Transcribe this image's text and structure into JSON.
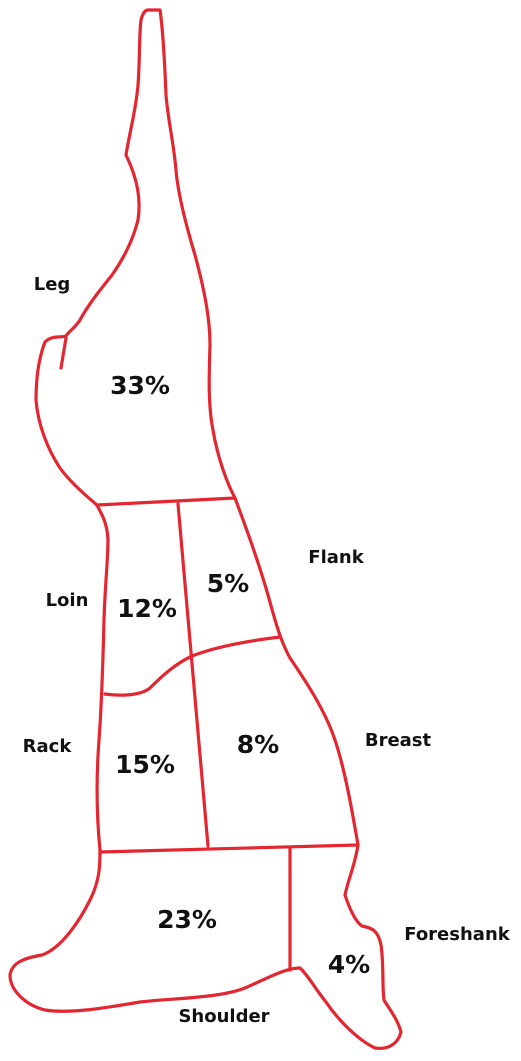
{
  "cuts": [
    {
      "name": "Leg",
      "share": "33%"
    },
    {
      "name": "Loin",
      "share": "12%"
    },
    {
      "name": "Flank",
      "share": "5%"
    },
    {
      "name": "Rack",
      "share": "15%"
    },
    {
      "name": "Breast",
      "share": "8%"
    },
    {
      "name": "Shoulder",
      "share": "23%"
    },
    {
      "name": "Foreshank",
      "share": "4%"
    }
  ]
}
